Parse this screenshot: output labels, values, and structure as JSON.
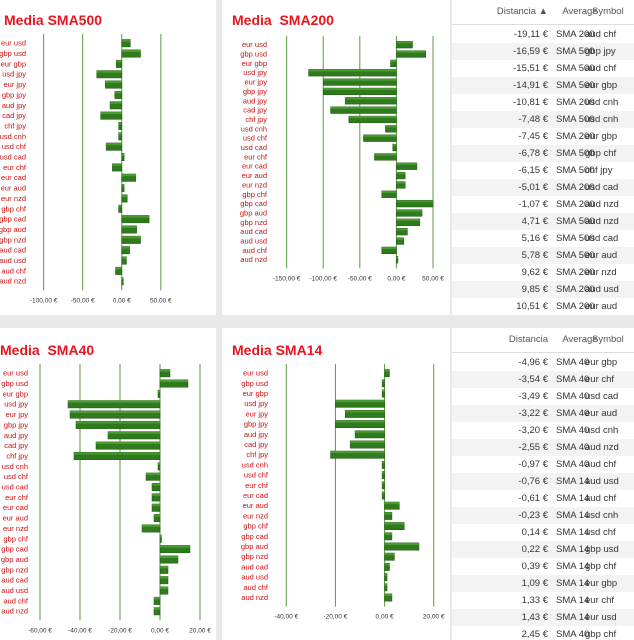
{
  "charts": [
    {
      "title": "Media SMA500",
      "chart_data": {
        "type": "bar",
        "orientation": "horizontal",
        "categories": [
          "eur usd",
          "gbp usd",
          "eur gbp",
          "usd jpy",
          "eur jpy",
          "gbp jpy",
          "aud jpy",
          "cad jpy",
          "chf jpy",
          "usd cnh",
          "usd chf",
          "usd cad",
          "eur chf",
          "eur cad",
          "eur aud",
          "eur nzd",
          "gbp chf",
          "gbp cad",
          "gbp aud",
          "gbp nzd",
          "aud cad",
          "aud usd",
          "aud chf",
          "aud nzd"
        ],
        "values": [
          11,
          24,
          -7,
          -32,
          -21,
          -9,
          -15,
          -27,
          -4,
          -4,
          -20,
          3,
          -12,
          18,
          3,
          7,
          -4,
          35,
          19,
          24,
          10,
          6,
          -8,
          1
        ],
        "ticks": [
          -100,
          -50,
          0,
          50
        ],
        "tick_labels": [
          "-100,00 €",
          "-50,00 €",
          "0,00 €",
          "50,00 €"
        ],
        "xlim": [
          -120,
          95
        ]
      }
    },
    {
      "title": "Media  SMA200",
      "chart_data": {
        "type": "bar",
        "orientation": "horizontal",
        "categories": [
          "eur usd",
          "gbp usd",
          "eur gbp",
          "usd jpy",
          "eur jpy",
          "gbp jpy",
          "aud jpy",
          "cad jpy",
          "chf jpy",
          "usd cnh",
          "usd chf",
          "usd cad",
          "eur chf",
          "eur cad",
          "eur aud",
          "eur nzd",
          "gbp chf",
          "gbp cad",
          "gbp aud",
          "gbp nzd",
          "aud cad",
          "aud usd",
          "aud chf",
          "aud nzd"
        ],
        "values": [
          22,
          40,
          -8,
          -120,
          -100,
          -100,
          -70,
          -90,
          -65,
          -15,
          -45,
          -5,
          -30,
          28,
          12,
          12,
          -20,
          50,
          35,
          32,
          15,
          10,
          -20,
          2
        ],
        "ticks": [
          -150,
          -100,
          -50,
          0,
          50
        ],
        "tick_labels": [
          "-150,00 €",
          "-100,00 €",
          "-50,00 €",
          "0,00 €",
          "50,00 €"
        ],
        "xlim": [
          -170,
          65
        ]
      }
    },
    {
      "title": "Media  SMA40",
      "chart_data": {
        "type": "bar",
        "orientation": "horizontal",
        "categories": [
          "eur usd",
          "gbp usd",
          "eur gbp",
          "usd jpy",
          "eur jpy",
          "gbp jpy",
          "aud jpy",
          "cad jpy",
          "chf jpy",
          "usd cnh",
          "usd chf",
          "usd cad",
          "eur chf",
          "eur cad",
          "eur aud",
          "eur nzd",
          "gbp chf",
          "gbp cad",
          "gbp aud",
          "gbp nzd",
          "aud cad",
          "aud usd",
          "aud chf",
          "aud nzd"
        ],
        "values": [
          5,
          14,
          -1,
          -46,
          -45,
          -42,
          -26,
          -32,
          -43,
          -1,
          -7,
          -4,
          -4,
          -4,
          -3,
          -9,
          0,
          15,
          9,
          4,
          4,
          4,
          -3,
          -3
        ],
        "ticks": [
          -60,
          -40,
          -20,
          0,
          20
        ],
        "tick_labels": [
          "-60,00 €",
          "-40,00 €",
          "-20,00 €",
          "0,00 €",
          "20,00 €"
        ],
        "xlim": [
          -70,
          25
        ]
      }
    },
    {
      "title": "Media SMA14",
      "chart_data": {
        "type": "bar",
        "orientation": "horizontal",
        "categories": [
          "eur usd",
          "gbp usd",
          "eur gbp",
          "usd jpy",
          "eur jpy",
          "gbp jpy",
          "aud jpy",
          "cad jpy",
          "chf jpy",
          "usd cnh",
          "usd chf",
          "eur chf",
          "eur cad",
          "eur aud",
          "eur nzd",
          "gbp chf",
          "gbp cad",
          "gbp aud",
          "gbp nzd",
          "aud cad",
          "aud usd",
          "aud chf",
          "aud nzd"
        ],
        "values": [
          2,
          -1,
          -1,
          -20,
          -16,
          -20,
          -12,
          -14,
          -22,
          -1,
          -1,
          -1,
          -1,
          6,
          3,
          8,
          3,
          14,
          4,
          2,
          1,
          1,
          3
        ],
        "ticks": [
          -40,
          -20,
          0,
          20
        ],
        "tick_labels": [
          "-40,00 €",
          "-20,00 €",
          "0,00 €",
          "20,00 €"
        ],
        "xlim": [
          -45,
          25
        ]
      }
    }
  ],
  "table_top": {
    "headers": {
      "dist": "Distancia",
      "avg": "Average",
      "sym": "Symbol"
    },
    "rows": [
      [
        "-19,11 €",
        "SMA 200",
        "aud chf"
      ],
      [
        "-16,59 €",
        "SMA 500",
        "gbp jpy"
      ],
      [
        "-15,51 €",
        "SMA 500",
        "aud chf"
      ],
      [
        "-14,91 €",
        "SMA 500",
        "eur gbp"
      ],
      [
        "-10,81 €",
        "SMA 200",
        "usd cnh"
      ],
      [
        "-7,48 €",
        "SMA 500",
        "usd cnh"
      ],
      [
        "-7,45 €",
        "SMA 200",
        "eur gbp"
      ],
      [
        "-6,78 €",
        "SMA 500",
        "gbp chf"
      ],
      [
        "-6,15 €",
        "SMA 500",
        "chf jpy"
      ],
      [
        "-5,01 €",
        "SMA 200",
        "usd cad"
      ],
      [
        "-1,07 €",
        "SMA 200",
        "aud nzd"
      ],
      [
        "4,71 €",
        "SMA 500",
        "aud nzd"
      ],
      [
        "5,16 €",
        "SMA 500",
        "usd cad"
      ],
      [
        "5,78 €",
        "SMA 500",
        "eur aud"
      ],
      [
        "9,62 €",
        "SMA 200",
        "eur nzd"
      ],
      [
        "9,85 €",
        "SMA 200",
        "aud usd"
      ],
      [
        "10,51 €",
        "SMA 200",
        "eur aud"
      ]
    ]
  },
  "table_bottom": {
    "headers": {
      "dist": "Distancia",
      "avg": "Average",
      "sym": "Symbol"
    },
    "rows": [
      [
        "-4,96 €",
        "SMA 40",
        "eur gbp"
      ],
      [
        "-3,54 €",
        "SMA 40",
        "eur chf"
      ],
      [
        "-3,49 €",
        "SMA 40",
        "usd cad"
      ],
      [
        "-3,22 €",
        "SMA 40",
        "eur aud"
      ],
      [
        "-3,20 €",
        "SMA 40",
        "usd cnh"
      ],
      [
        "-2,55 €",
        "SMA 40",
        "aud nzd"
      ],
      [
        "-0,97 €",
        "SMA 40",
        "aud chf"
      ],
      [
        "-0,76 €",
        "SMA 14",
        "aud usd"
      ],
      [
        "-0,61 €",
        "SMA 14",
        "aud chf"
      ],
      [
        "-0,23 €",
        "SMA 14",
        "usd cnh"
      ],
      [
        "0,14 €",
        "SMA 14",
        "usd chf"
      ],
      [
        "0,22 €",
        "SMA 14",
        "gbp usd"
      ],
      [
        "0,39 €",
        "SMA 14",
        "gbp chf"
      ],
      [
        "1,09 €",
        "SMA 14",
        "eur gbp"
      ],
      [
        "1,33 €",
        "SMA 14",
        "eur chf"
      ],
      [
        "1,43 €",
        "SMA 14",
        "eur usd"
      ],
      [
        "2,45 €",
        "SMA 40",
        "gbp chf"
      ]
    ]
  },
  "colors": {
    "bar": "#2f7a1d",
    "bar_top": "#4a9a33",
    "label": "#cc1111",
    "grid": "#5a9a40",
    "tick": "#333333"
  }
}
